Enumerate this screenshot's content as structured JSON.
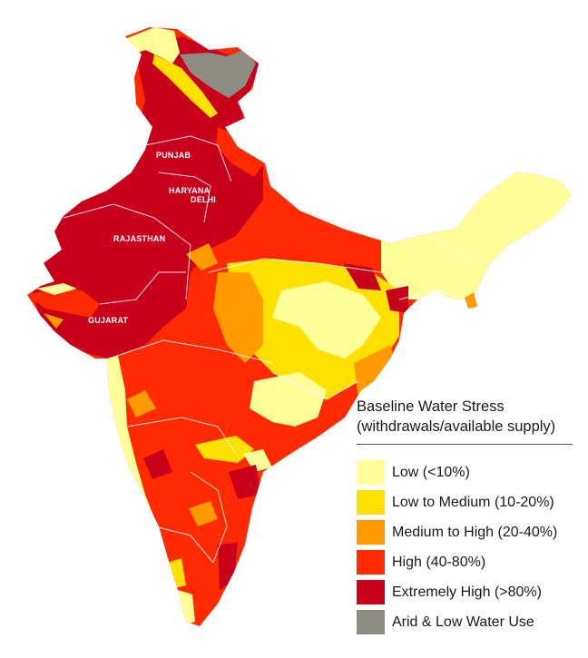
{
  "map": {
    "state_labels": {
      "punjab": "PUNJAB",
      "haryana": "HARYANA",
      "delhi": "DELHI",
      "rajasthan": "RAJASTHAN",
      "gujarat": "GUJARAT"
    }
  },
  "legend": {
    "title_line1": "Baseline Water Stress",
    "title_line2": "(withdrawals/available supply)",
    "items": [
      {
        "label": "Low (<10%)",
        "color": "#ffff99"
      },
      {
        "label": "Low to Medium (10-20%)",
        "color": "#ffe100"
      },
      {
        "label": "Medium to High (20-40%)",
        "color": "#ff9a00"
      },
      {
        "label": "High (40-80%)",
        "color": "#ff2a00"
      },
      {
        "label": "Extremely High (>80%)",
        "color": "#c8001c"
      },
      {
        "label": "Arid & Low Water Use",
        "color": "#8c8c82"
      }
    ]
  }
}
